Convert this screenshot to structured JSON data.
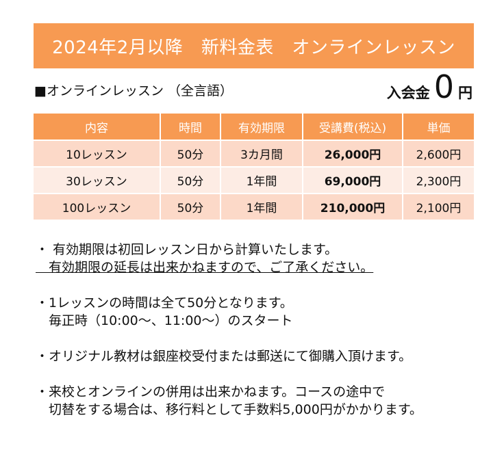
{
  "banner": {
    "title": "2024年2月以降　新料金表　オンラインレッスン"
  },
  "section": {
    "title": "■オンラインレッスン （全言語）"
  },
  "entrance_fee": {
    "label": "入会金",
    "amount": "0",
    "unit": "円"
  },
  "table": {
    "headers": [
      "内容",
      "時間",
      "有効期限",
      "受講費(税込)",
      "単価"
    ],
    "rows": [
      [
        "10レッスン",
        "50分",
        "3カ月間",
        "26,000円",
        "2,600円"
      ],
      [
        "30レッスン",
        "50分",
        "1年間",
        "69,000円",
        "2,300円"
      ],
      [
        "100レッスン",
        "50分",
        "1年間",
        "210,000円",
        "2,100円"
      ]
    ]
  },
  "notes": [
    {
      "line1": "・ 有効期限は初回レッスン日から計算いたします。",
      "line2": "　有効期限の延長は出来かねますので、ご了承ください。"
    },
    {
      "line1": "・1レッスンの時間は全て50分となります。",
      "line2": "　毎正時（10:00～、11:00～）のスタート"
    },
    {
      "line1": "・オリジナル教材は銀座校受付または郵送にて御購入頂けます。",
      "line2": ""
    },
    {
      "line1": "・来校とオンラインの併用は出来かねます。コースの途中で",
      "line2": "　切替をする場合は、移行料として手数料5,000円がかかります。"
    }
  ]
}
